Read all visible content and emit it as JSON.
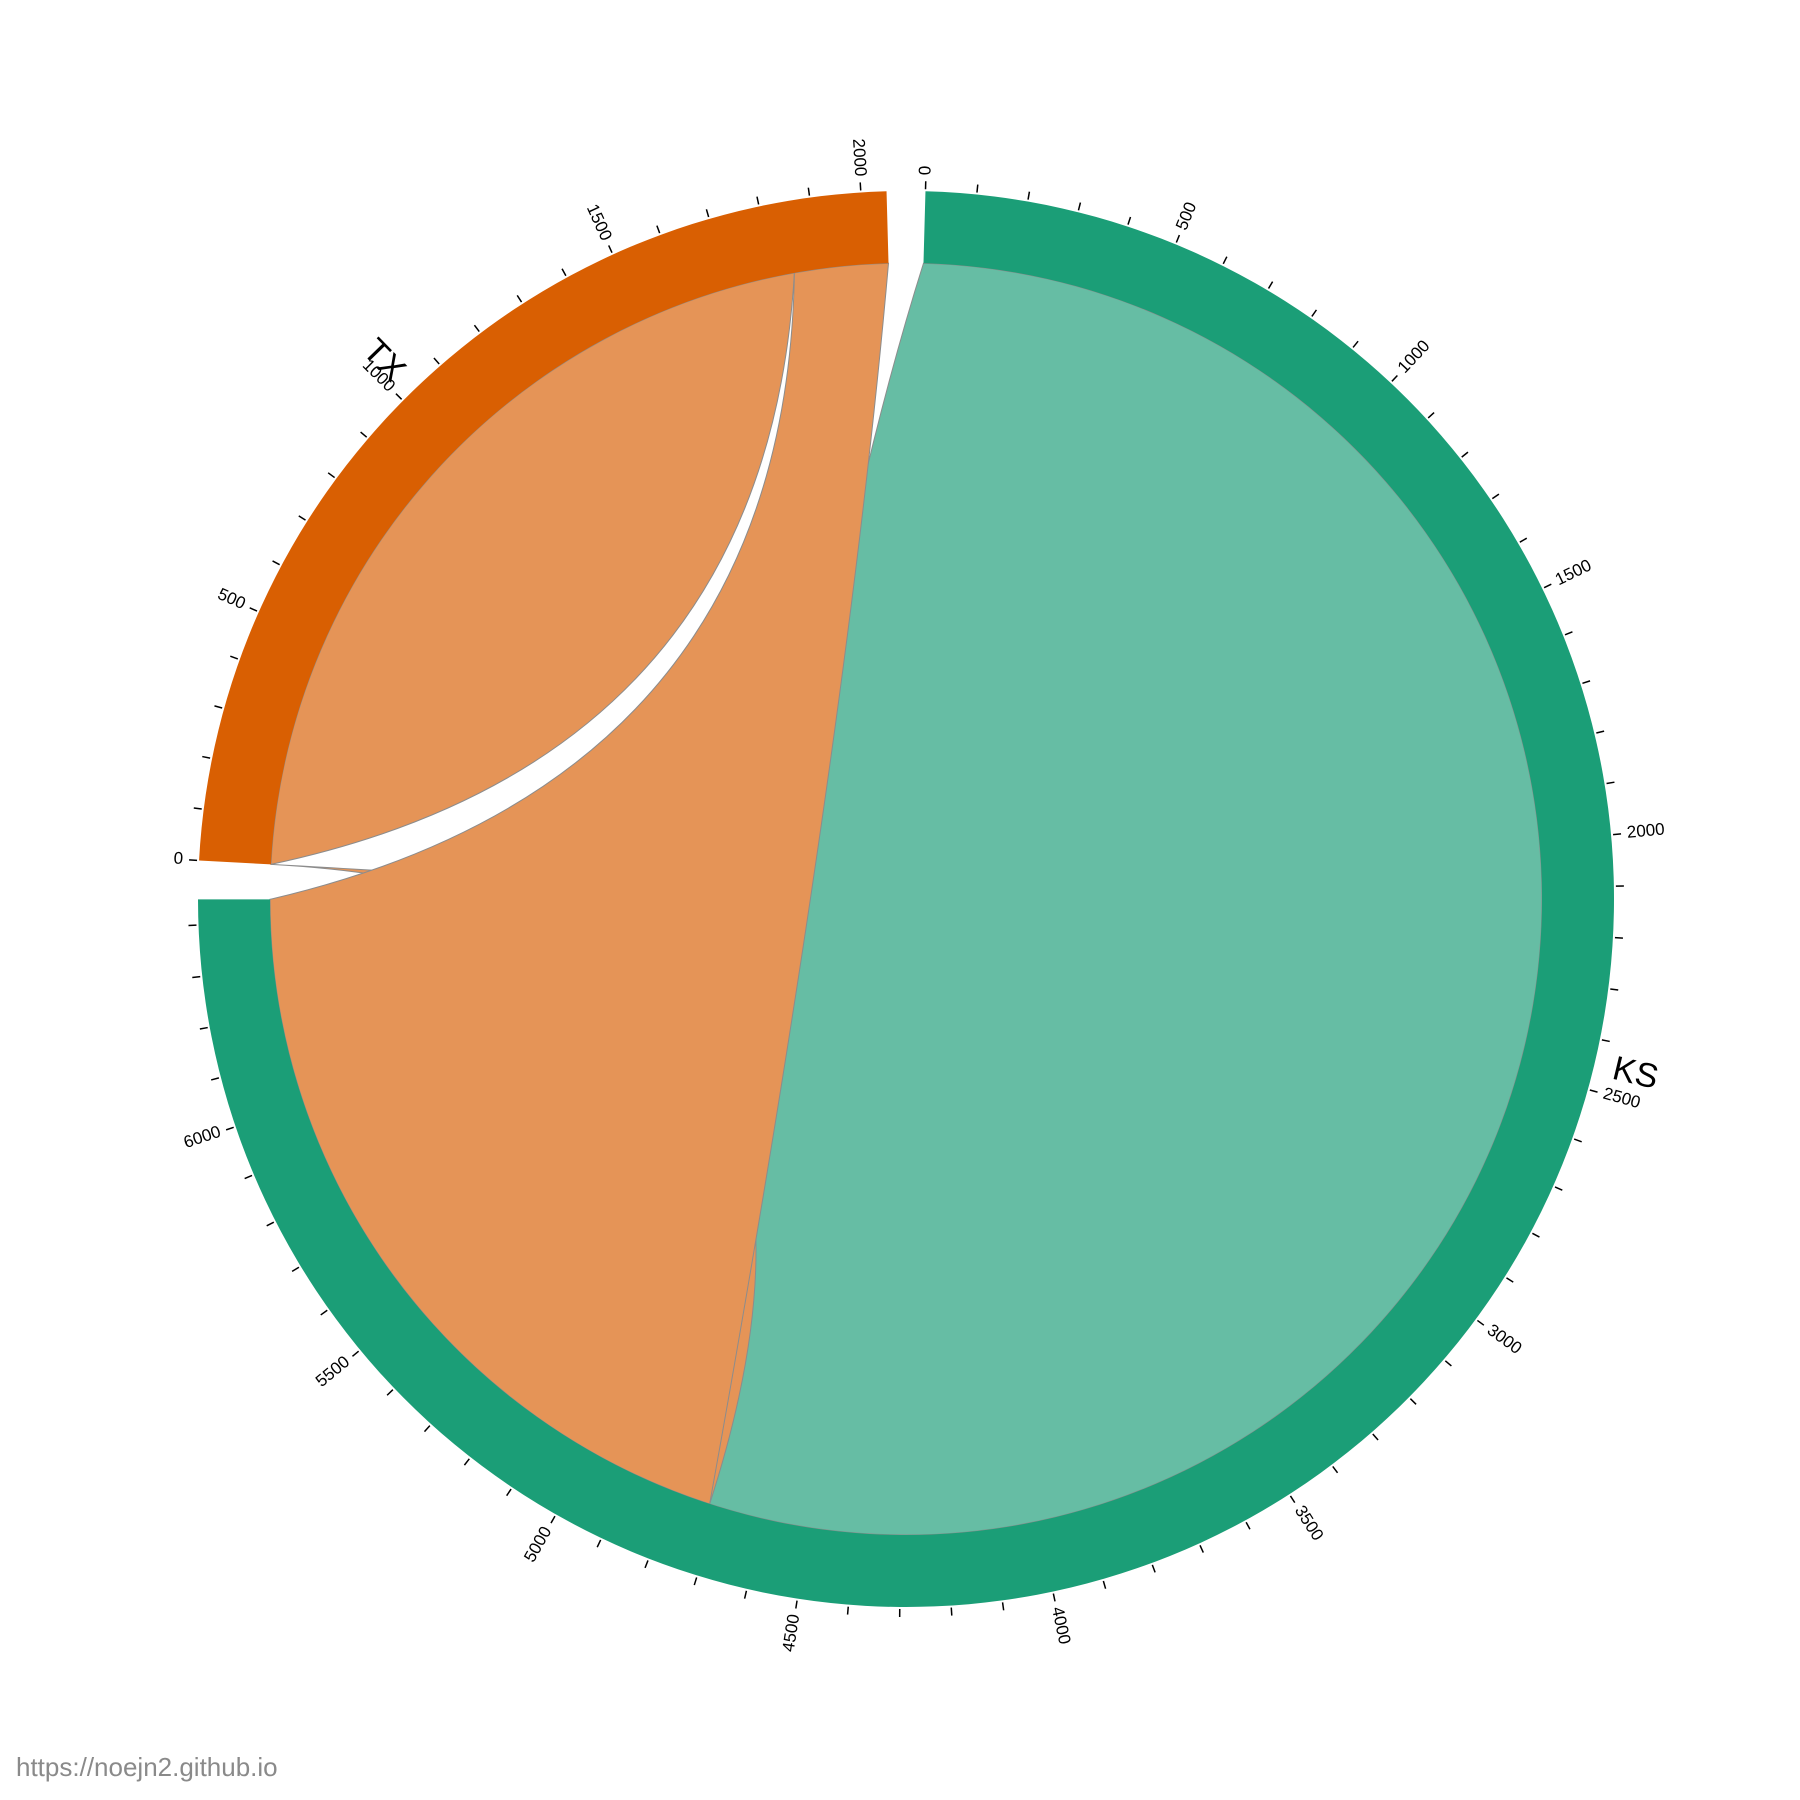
{
  "chart_data": {
    "type": "chord",
    "groups": [
      {
        "name": "KS",
        "total": 6450,
        "tick_labels": [
          "0",
          "500",
          "1000",
          "1500",
          "2000",
          "2500",
          "3000",
          "3500",
          "4000",
          "4500",
          "5000",
          "5500",
          "6000"
        ],
        "color": "#1b9e77",
        "ribbon_color": "#66bda4"
      },
      {
        "name": "TX",
        "total": 2050,
        "tick_labels": [
          "0",
          "500",
          "1000",
          "1500",
          "2000"
        ],
        "color": "#d95f02",
        "ribbon_color": "#e59457"
      }
    ],
    "chords": [
      {
        "source": "KS",
        "target": "KS",
        "value": 4720,
        "color": "#66bda4"
      },
      {
        "source": "TX",
        "target": "KS",
        "value": 1730,
        "color": "#e59457"
      },
      {
        "source": "TX",
        "target": "TX",
        "value": 160,
        "color": "#e59457"
      }
    ]
  },
  "footer": {
    "url": "https://noejn2.github.io"
  }
}
